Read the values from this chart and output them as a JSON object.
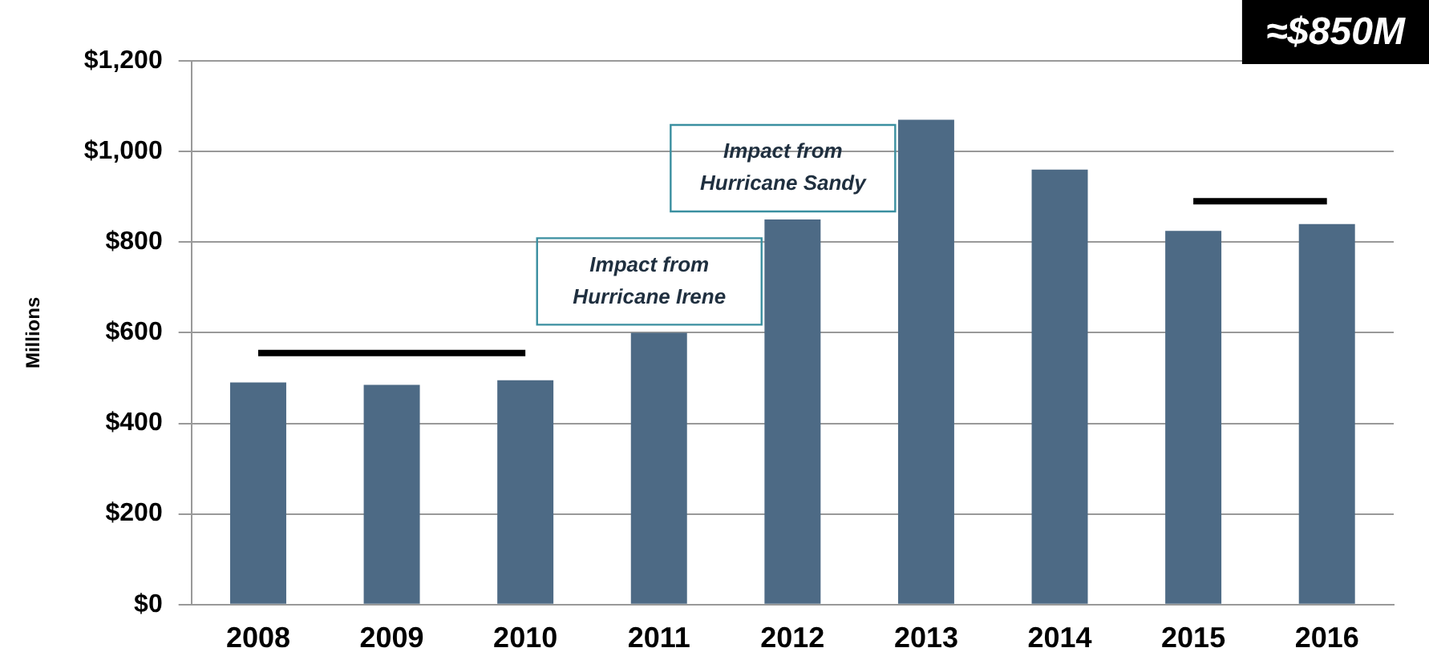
{
  "chart_data": {
    "type": "bar",
    "ylabel": "Millions",
    "categories": [
      "2008",
      "2009",
      "2010",
      "2011",
      "2012",
      "2013",
      "2014",
      "2015",
      "2016"
    ],
    "series": [
      {
        "color": "#4d6a85",
        "values": [
          490,
          485,
          495,
          600,
          850,
          1070,
          960,
          825,
          840
        ]
      },
      {
        "type": "line",
        "color": "#000000",
        "values": [
          555,
          555,
          555,
          null,
          null,
          null,
          null,
          null,
          null
        ]
      },
      {
        "type": "line",
        "color": "#000000",
        "values": [
          null,
          null,
          null,
          null,
          null,
          null,
          null,
          890,
          890
        ]
      }
    ],
    "ylim": [
      0,
      1200
    ],
    "yticks": [
      {
        "value": 0,
        "label": "$0"
      },
      {
        "value": 200,
        "label": "$200"
      },
      {
        "value": 400,
        "label": "$400"
      },
      {
        "value": 600,
        "label": "$600"
      },
      {
        "value": 800,
        "label": "$800"
      },
      {
        "value": 1000,
        "label": "$1,000"
      },
      {
        "value": 1200,
        "label": "$1,200"
      }
    ],
    "grid": "y",
    "legend": false,
    "marker": "none",
    "line_style": "solid",
    "annotations": [
      {
        "text": "Impact from Hurricane Irene",
        "x": "2011",
        "y": 600
      },
      {
        "text": "Impact from Hurricane Sandy",
        "x": "2012",
        "y": 850
      },
      "≈$850M"
    ]
  }
}
